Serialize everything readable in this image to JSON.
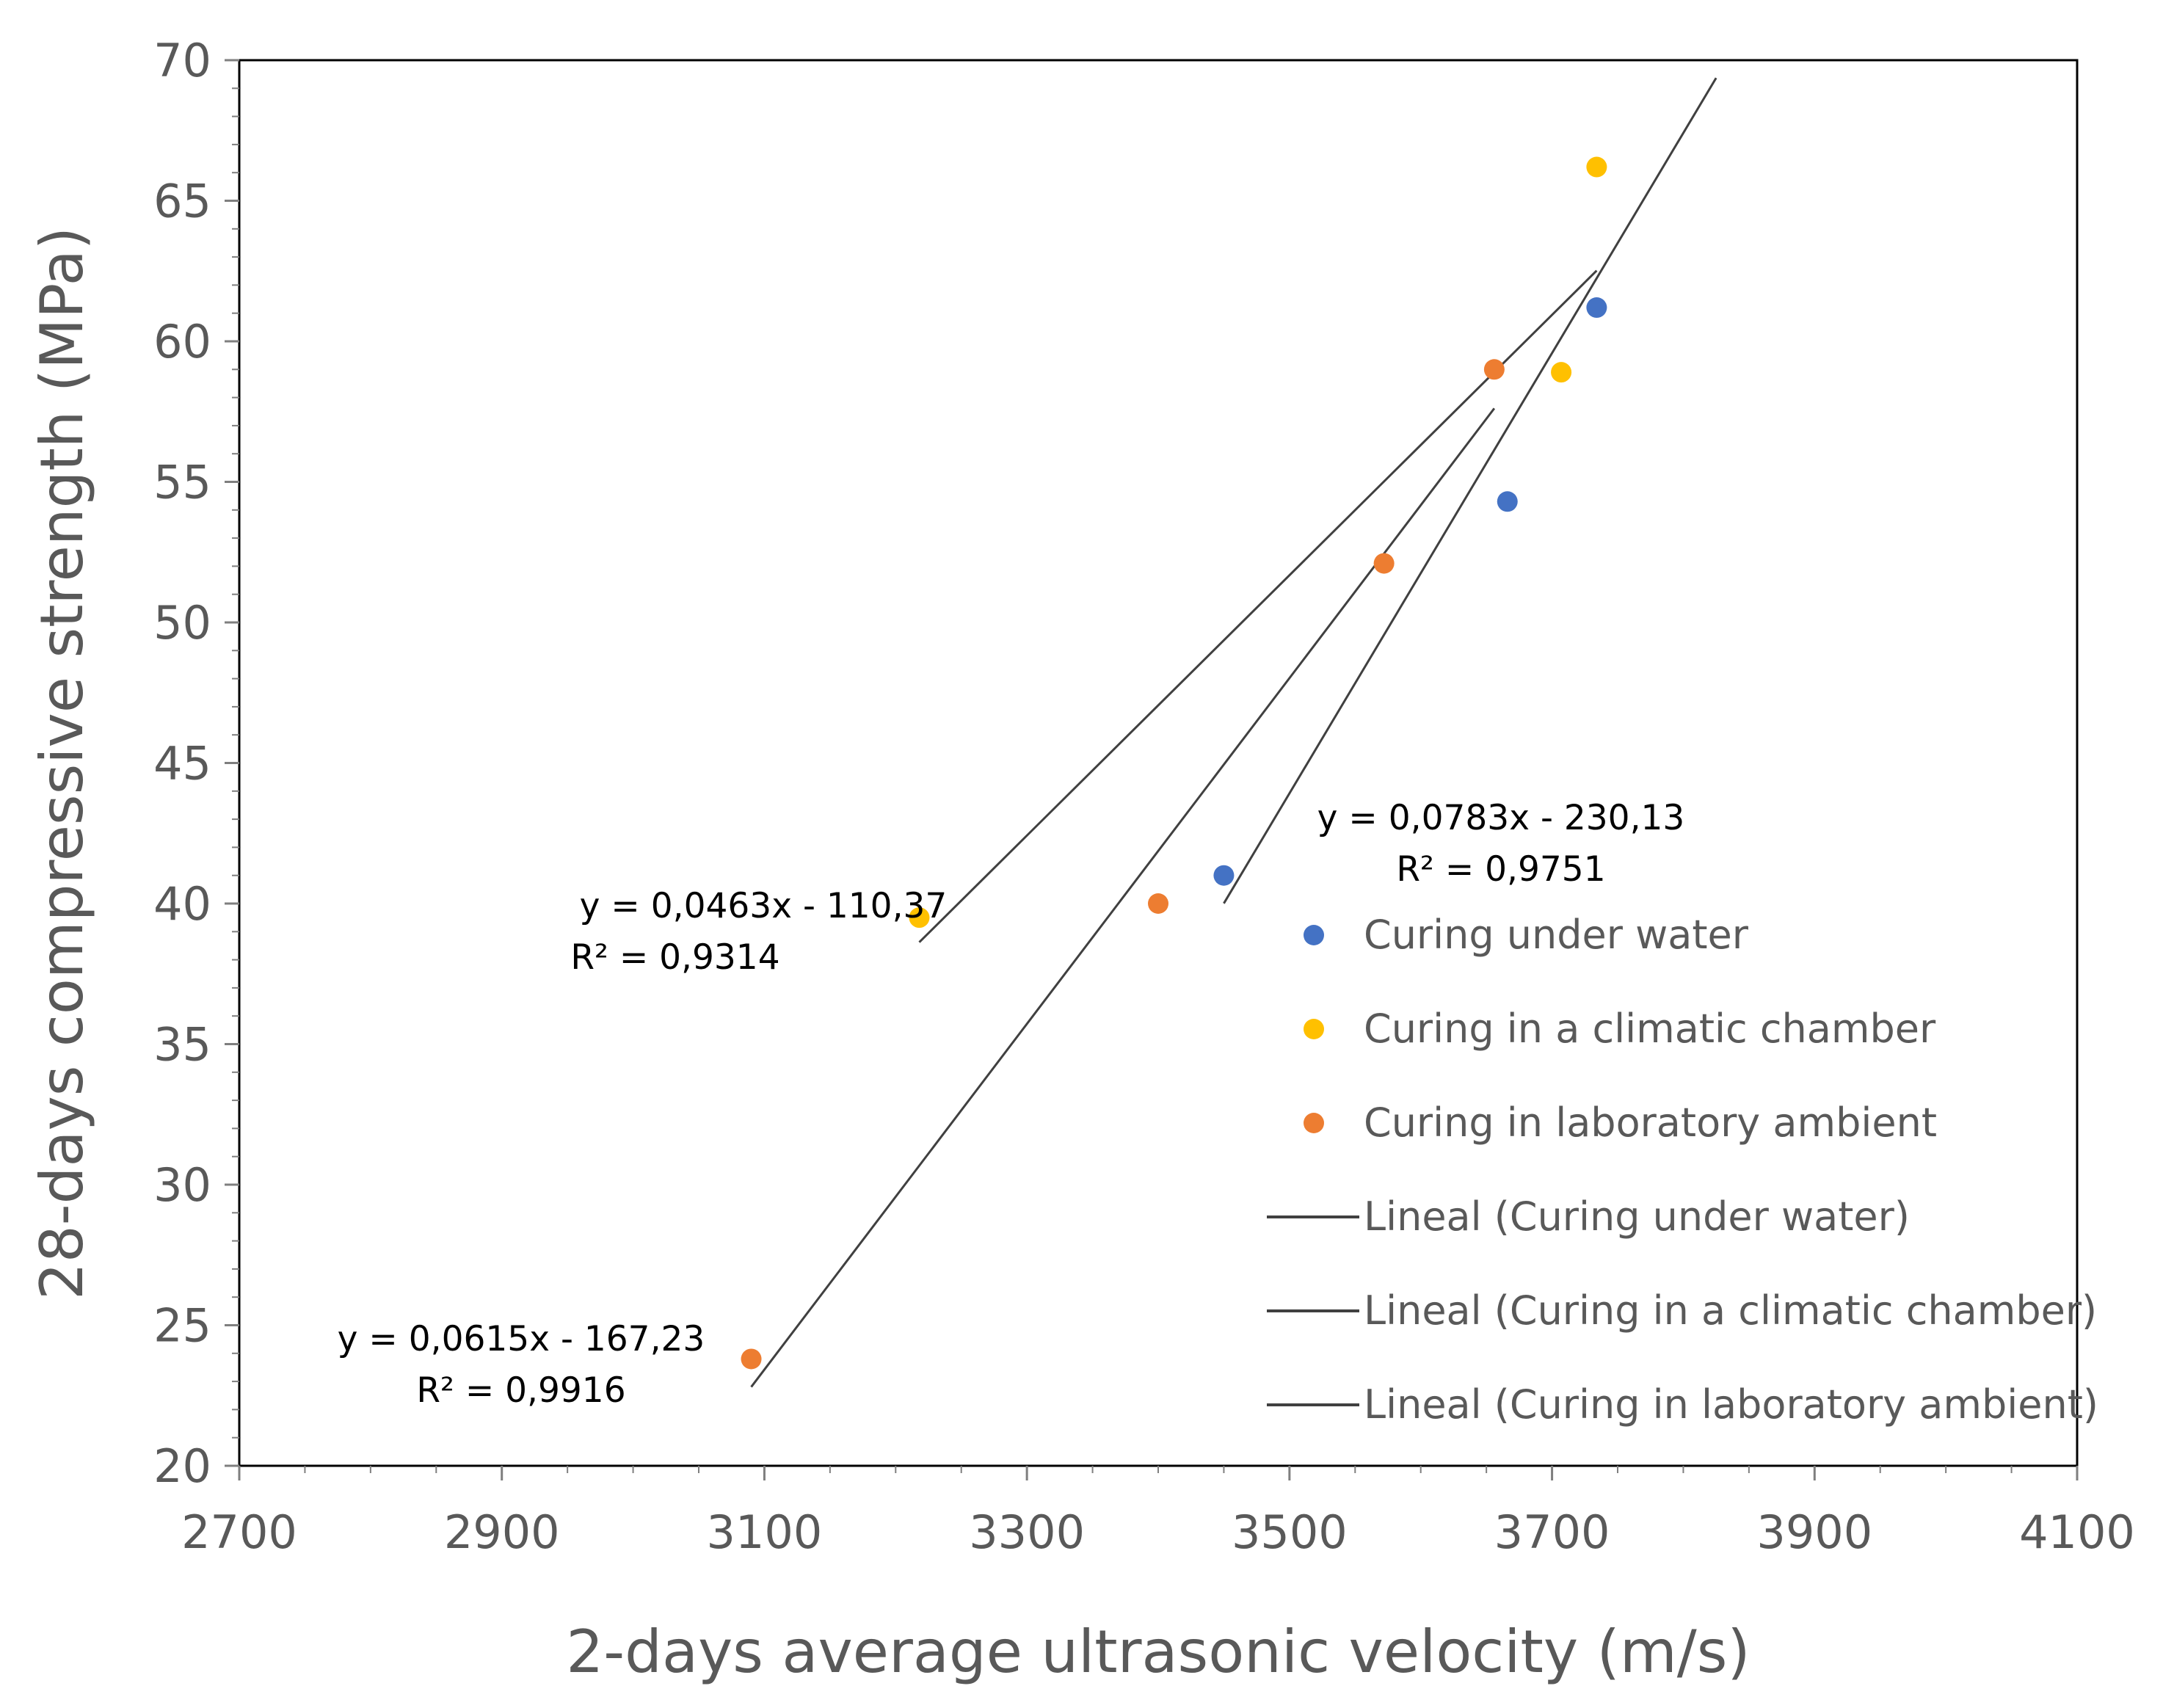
{
  "chart_data": {
    "type": "scatter",
    "xlabel": "2-days average ultrasonic velocity (m/s)",
    "ylabel": "28-days compressive strength (MPa)",
    "xlim": [
      2700,
      4100
    ],
    "ylim": [
      20,
      70
    ],
    "x_ticks": [
      "2700",
      "2900",
      "3100",
      "3300",
      "3500",
      "3700",
      "3900",
      "4100"
    ],
    "y_ticks": [
      "20",
      "25",
      "30",
      "35",
      "40",
      "45",
      "50",
      "55",
      "60",
      "65",
      "70"
    ],
    "grid": false,
    "legend_position": "right",
    "series": [
      {
        "name": "Curing under water",
        "color": "#4472C4",
        "points": [
          [
            3450,
            41.0
          ],
          [
            3666,
            54.3
          ],
          [
            3734,
            61.2
          ]
        ]
      },
      {
        "name": "Curing in a climatic chamber",
        "color": "#FFC000",
        "points": [
          [
            3218,
            39.5
          ],
          [
            3707,
            58.9
          ],
          [
            3734,
            66.2
          ]
        ]
      },
      {
        "name": "Curing in laboratory ambient",
        "color": "#ED7D31",
        "points": [
          [
            3090,
            23.8
          ],
          [
            3400,
            40.0
          ],
          [
            3572,
            52.1
          ],
          [
            3656,
            59.0
          ]
        ]
      }
    ],
    "trendlines": [
      {
        "name": "Lineal (Curing under water)",
        "color": "#404040",
        "x_range": [
          3450,
          3825
        ],
        "equation": "y = 0,0783x - 230,13",
        "r2": "R² = 0,9751"
      },
      {
        "name": "Lineal (Curing in a climatic chamber)",
        "color": "#404040",
        "x_range": [
          3218,
          3734
        ],
        "equation": "y = 0,0463x - 110,37",
        "r2": "R² = 0,9314"
      },
      {
        "name": "Lineal (Curing in laboratory ambient)",
        "color": "#404040",
        "x_range": [
          3090,
          3656
        ],
        "equation": "y = 0,0615x - 167,23",
        "r2": "R² = 0,9916"
      }
    ]
  }
}
